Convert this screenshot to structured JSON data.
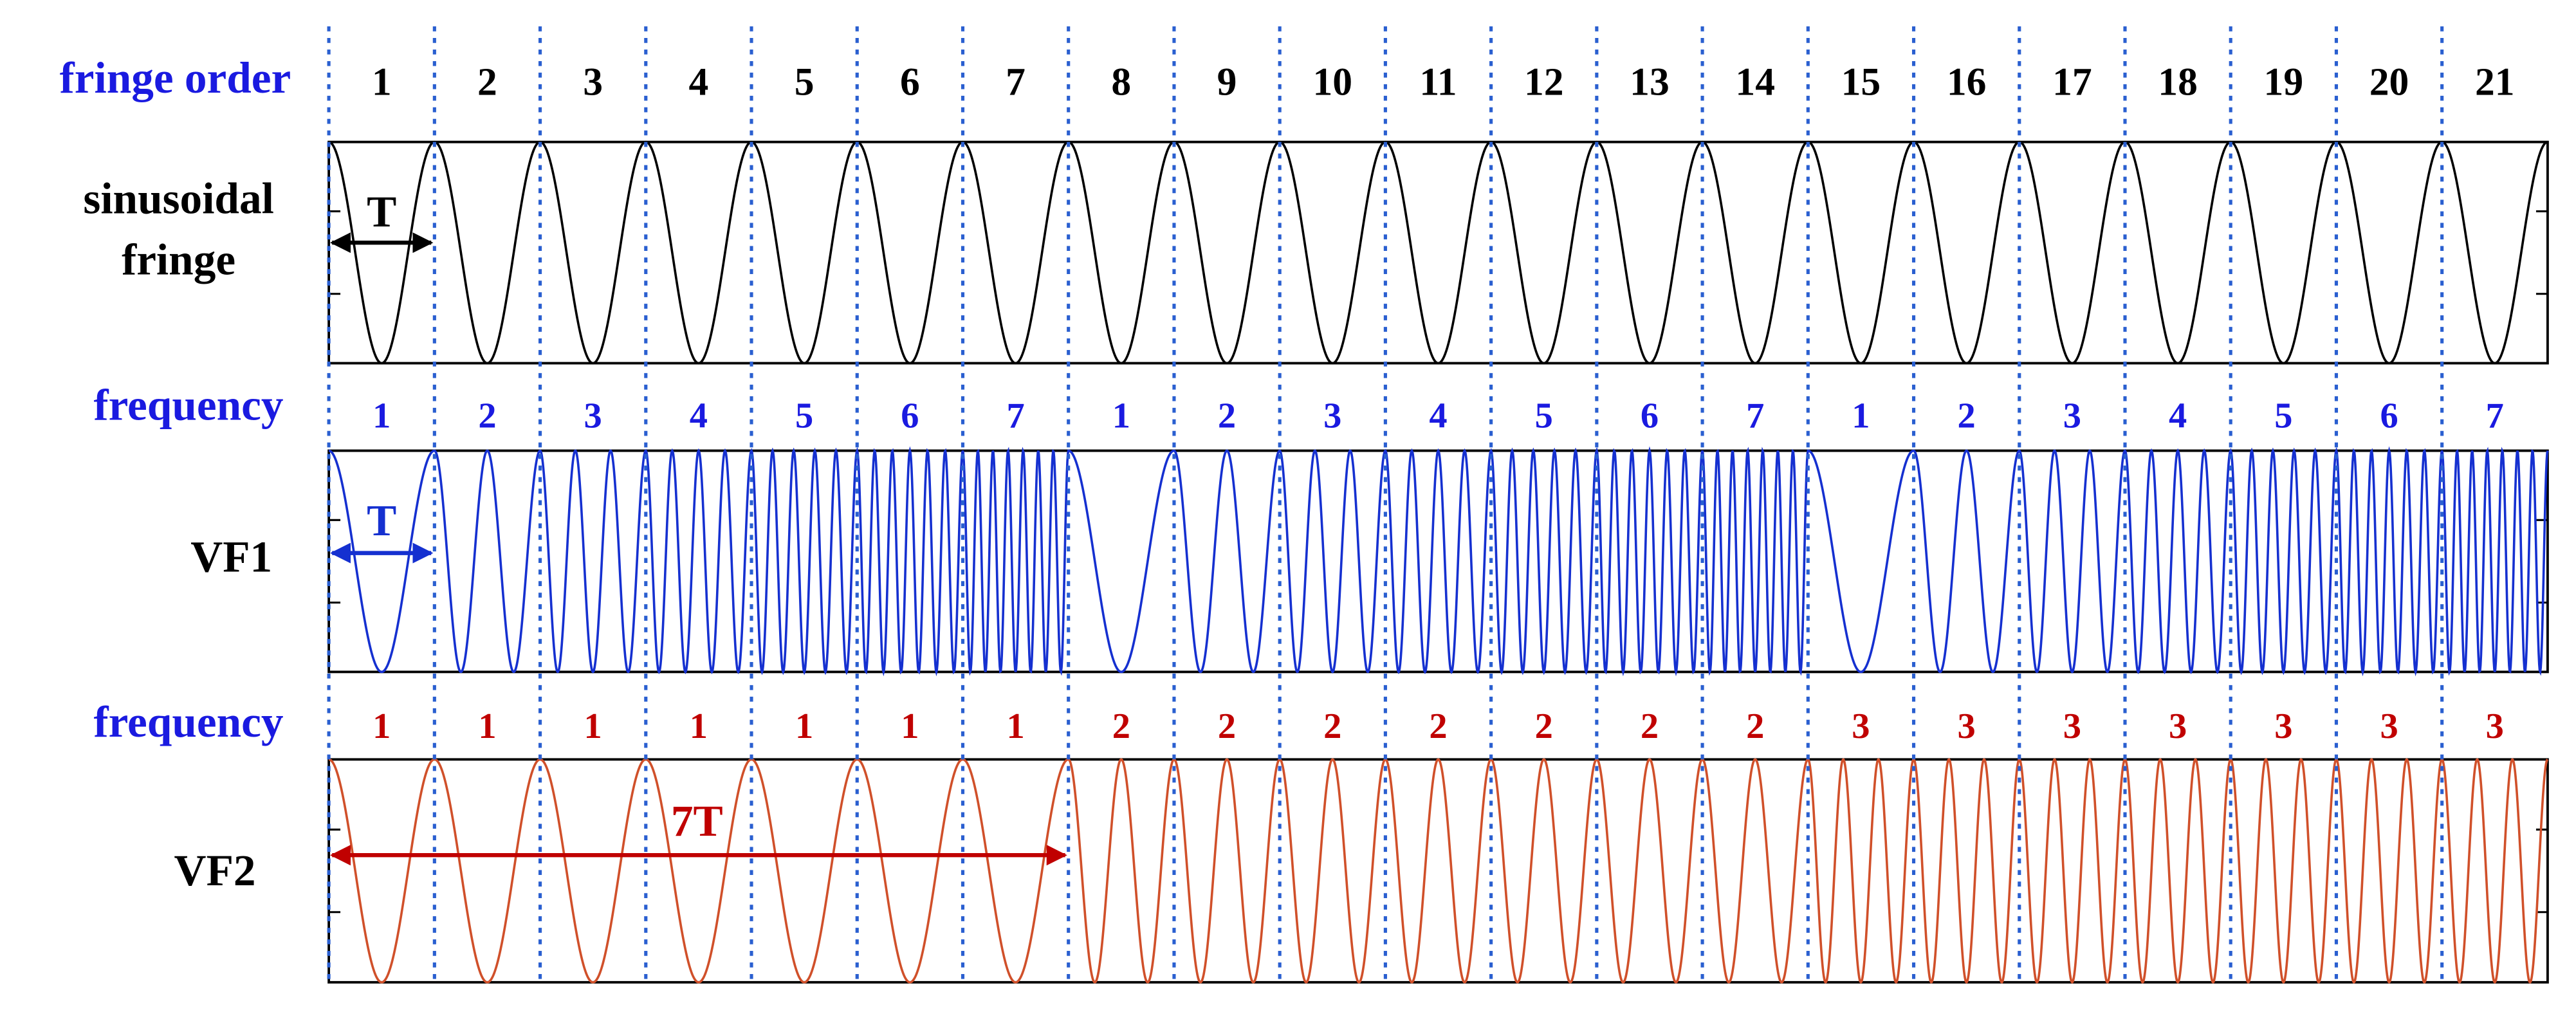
{
  "header": {
    "title": "fringe order",
    "orders": [
      1,
      2,
      3,
      4,
      5,
      6,
      7,
      8,
      9,
      10,
      11,
      12,
      13,
      14,
      15,
      16,
      17,
      18,
      19,
      20,
      21
    ]
  },
  "rows": [
    {
      "label": [
        "sinusoidal",
        "fringe"
      ],
      "annotation": "T"
    },
    {
      "frequency_title": "frequency",
      "frequencies": [
        1,
        2,
        3,
        4,
        5,
        6,
        7,
        1,
        2,
        3,
        4,
        5,
        6,
        7,
        1,
        2,
        3,
        4,
        5,
        6,
        7
      ],
      "label": "VF1",
      "annotation": "T"
    },
    {
      "frequency_title": "frequency",
      "frequencies": [
        1,
        1,
        1,
        1,
        1,
        1,
        1,
        2,
        2,
        2,
        2,
        2,
        2,
        2,
        3,
        3,
        3,
        3,
        3,
        3,
        3
      ],
      "label": "VF2",
      "annotation": "7T"
    }
  ]
}
